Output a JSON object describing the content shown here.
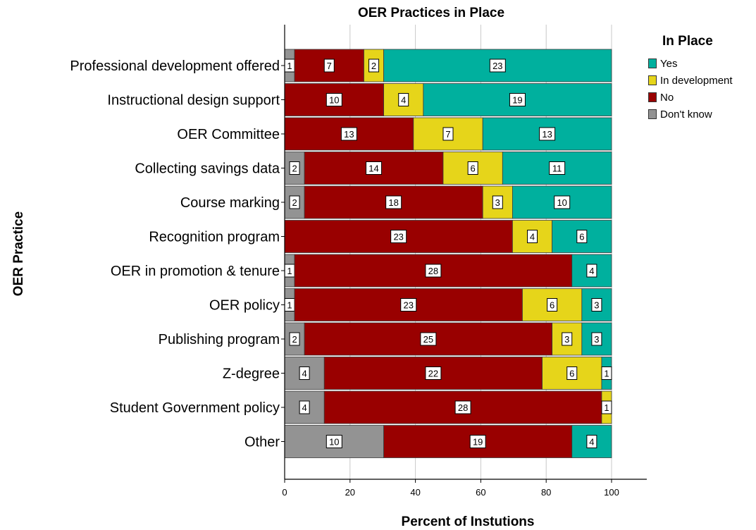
{
  "chart_data": {
    "type": "bar",
    "orientation": "horizontal",
    "stacked": true,
    "title": "OER Practices in Place",
    "xlabel": "Percent of Instutions",
    "ylabel": "OER Practice",
    "xlim": [
      0,
      100
    ],
    "xticks": [
      0,
      20,
      40,
      60,
      80,
      100
    ],
    "grid": true,
    "legend_title": "In Place",
    "legend_position": "right",
    "categories": [
      "Professional development offered",
      "Instructional design support",
      "OER Committee",
      "Collecting savings data",
      "Course marking",
      "Recognition program",
      "OER in promotion & tenure",
      "OER policy",
      "Publishing program",
      "Z-degree",
      "Student Government policy",
      "Other"
    ],
    "series": [
      {
        "name": "Don't know",
        "color": "#939393",
        "values": [
          1,
          0,
          0,
          2,
          2,
          0,
          1,
          1,
          2,
          4,
          4,
          10
        ]
      },
      {
        "name": "No",
        "color": "#990000",
        "values": [
          7,
          10,
          13,
          14,
          18,
          23,
          28,
          23,
          25,
          22,
          28,
          19
        ]
      },
      {
        "name": "In development",
        "color": "#e6d51a",
        "values": [
          2,
          4,
          7,
          6,
          3,
          4,
          0,
          6,
          3,
          6,
          1,
          0
        ]
      },
      {
        "name": "Yes",
        "color": "#00b09e",
        "values": [
          23,
          19,
          13,
          11,
          10,
          6,
          4,
          3,
          3,
          1,
          0,
          4
        ]
      }
    ],
    "legend_order": [
      "Yes",
      "In development",
      "No",
      "Don't know"
    ]
  }
}
